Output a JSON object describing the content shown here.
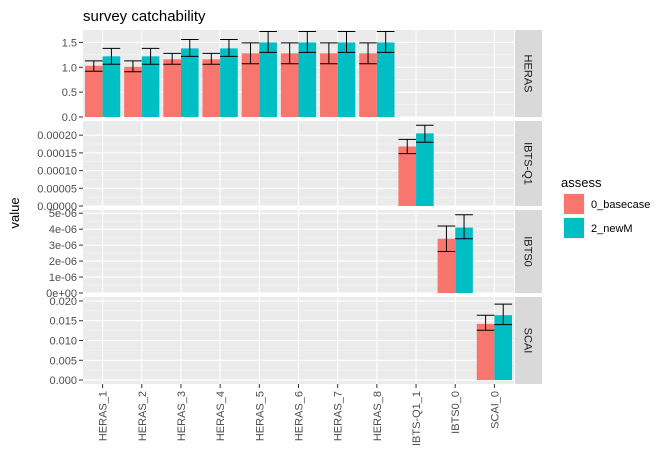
{
  "chart_data": {
    "type": "bar",
    "title": "survey catchability",
    "xlabel": "",
    "ylabel": "value",
    "grid": true,
    "legend_position": "right",
    "legend": {
      "title": "assess",
      "entries": [
        {
          "label": "0_basecase",
          "color": "#F8766D"
        },
        {
          "label": "2_newM",
          "color": "#00BFC4"
        }
      ]
    },
    "categories": [
      "HERAS_1",
      "HERAS_2",
      "HERAS_3",
      "HERAS_4",
      "HERAS_5",
      "HERAS_6",
      "HERAS_7",
      "HERAS_8",
      "IBTS-Q1_1",
      "IBTS0_0",
      "SCAI_0"
    ],
    "panels": [
      {
        "strip": "HERAS",
        "ylim": [
          0,
          1.75
        ],
        "yticks": [
          0,
          0.5,
          1,
          1.5
        ],
        "ytick_labels": [
          "0.0",
          "0.5",
          "1.0",
          "1.5"
        ],
        "series": [
          {
            "name": "0_basecase",
            "values": [
              1.03,
              1.01,
              1.16,
              1.16,
              1.28,
              1.28,
              1.28,
              1.28,
              null,
              null,
              null
            ],
            "err_low": [
              0.92,
              0.91,
              1.06,
              1.06,
              1.07,
              1.07,
              1.07,
              1.07,
              null,
              null,
              null
            ],
            "err_high": [
              1.13,
              1.13,
              1.28,
              1.28,
              1.49,
              1.49,
              1.49,
              1.49,
              null,
              null,
              null
            ]
          },
          {
            "name": "2_newM",
            "values": [
              1.22,
              1.22,
              1.38,
              1.38,
              1.5,
              1.5,
              1.5,
              1.5,
              null,
              null,
              null
            ],
            "err_low": [
              1.06,
              1.06,
              1.22,
              1.22,
              1.3,
              1.3,
              1.3,
              1.3,
              null,
              null,
              null
            ],
            "err_high": [
              1.38,
              1.38,
              1.56,
              1.56,
              1.72,
              1.72,
              1.72,
              1.72,
              null,
              null,
              null
            ]
          }
        ]
      },
      {
        "strip": "IBTS-Q1",
        "ylim": [
          0,
          0.00024
        ],
        "yticks": [
          0,
          5e-05,
          0.0001,
          0.00015,
          0.0002
        ],
        "ytick_labels": [
          "0.00000",
          "0.00005",
          "0.00010",
          "0.00015",
          "0.00020"
        ],
        "series": [
          {
            "name": "0_basecase",
            "values": [
              null,
              null,
              null,
              null,
              null,
              null,
              null,
              null,
              0.000168,
              null,
              null
            ],
            "err_low": [
              null,
              null,
              null,
              null,
              null,
              null,
              null,
              null,
              0.000148,
              null,
              null
            ],
            "err_high": [
              null,
              null,
              null,
              null,
              null,
              null,
              null,
              null,
              0.000188,
              null,
              null
            ]
          },
          {
            "name": "2_newM",
            "values": [
              null,
              null,
              null,
              null,
              null,
              null,
              null,
              null,
              0.000205,
              null,
              null
            ],
            "err_low": [
              null,
              null,
              null,
              null,
              null,
              null,
              null,
              null,
              0.00018,
              null,
              null
            ],
            "err_high": [
              null,
              null,
              null,
              null,
              null,
              null,
              null,
              null,
              0.000228,
              null,
              null
            ]
          }
        ]
      },
      {
        "strip": "IBTS0",
        "ylim": [
          0,
          5.2e-06
        ],
        "yticks": [
          0,
          1e-06,
          2e-06,
          3e-06,
          4e-06,
          5e-06
        ],
        "ytick_labels": [
          "0e+00",
          "1e-06",
          "2e-06",
          "3e-06",
          "4e-06",
          "5e-06"
        ],
        "series": [
          {
            "name": "0_basecase",
            "values": [
              null,
              null,
              null,
              null,
              null,
              null,
              null,
              null,
              null,
              3.4e-06,
              null
            ],
            "err_low": [
              null,
              null,
              null,
              null,
              null,
              null,
              null,
              null,
              null,
              2.6e-06,
              null
            ],
            "err_high": [
              null,
              null,
              null,
              null,
              null,
              null,
              null,
              null,
              null,
              4.2e-06,
              null
            ]
          },
          {
            "name": "2_newM",
            "values": [
              null,
              null,
              null,
              null,
              null,
              null,
              null,
              null,
              null,
              4.1e-06,
              null
            ],
            "err_low": [
              null,
              null,
              null,
              null,
              null,
              null,
              null,
              null,
              null,
              3.4e-06,
              null
            ],
            "err_high": [
              null,
              null,
              null,
              null,
              null,
              null,
              null,
              null,
              null,
              4.9e-06,
              null
            ]
          }
        ]
      },
      {
        "strip": "SCAI",
        "ylim": [
          -0.001,
          0.021
        ],
        "yticks": [
          0,
          0.005,
          0.01,
          0.015,
          0.02
        ],
        "ytick_labels": [
          "0.000",
          "0.005",
          "0.010",
          "0.015",
          "0.020"
        ],
        "series": [
          {
            "name": "0_basecase",
            "values": [
              null,
              null,
              null,
              null,
              null,
              null,
              null,
              null,
              null,
              null,
              0.0142
            ],
            "err_low": [
              null,
              null,
              null,
              null,
              null,
              null,
              null,
              null,
              null,
              null,
              0.0126
            ],
            "err_high": [
              null,
              null,
              null,
              null,
              null,
              null,
              null,
              null,
              null,
              null,
              0.0164
            ]
          },
          {
            "name": "2_newM",
            "values": [
              null,
              null,
              null,
              null,
              null,
              null,
              null,
              null,
              null,
              null,
              0.0164
            ],
            "err_low": [
              null,
              null,
              null,
              null,
              null,
              null,
              null,
              null,
              null,
              null,
              0.014
            ],
            "err_high": [
              null,
              null,
              null,
              null,
              null,
              null,
              null,
              null,
              null,
              null,
              0.0192
            ]
          }
        ]
      }
    ]
  }
}
